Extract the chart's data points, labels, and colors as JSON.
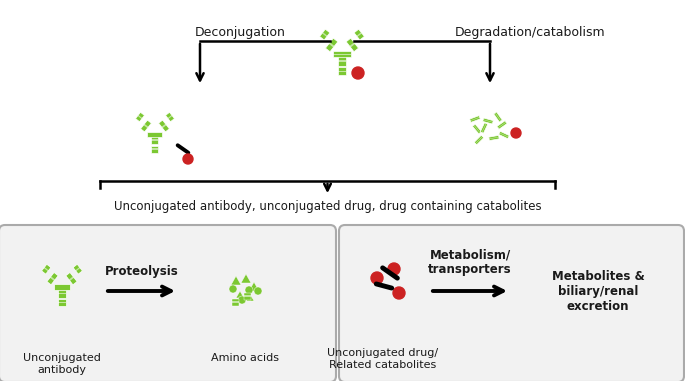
{
  "bg_color": "#ffffff",
  "green_color": "#7cc832",
  "red_color": "#cc2222",
  "black_color": "#1a1a1a",
  "deconjugation_label": "Deconjugation",
  "degradation_label": "Degradation/catabolism",
  "bottom_label": "Unconjugated antibody, unconjugated drug, drug containing catabolites",
  "proteolysis_label": "Proteolysis",
  "metabolism_label": "Metabolism/\ntransporters",
  "metabolites_label": "Metabolites &\nbiliary/renal\nexcretion",
  "unconj_antibody_label": "Unconjugated\nantibody",
  "amino_acids_label": "Amino acids",
  "unconj_drug_label": "Unconjugated drug/\nRelated catabolites",
  "fig_w": 6.85,
  "fig_h": 3.81,
  "dpi": 100
}
